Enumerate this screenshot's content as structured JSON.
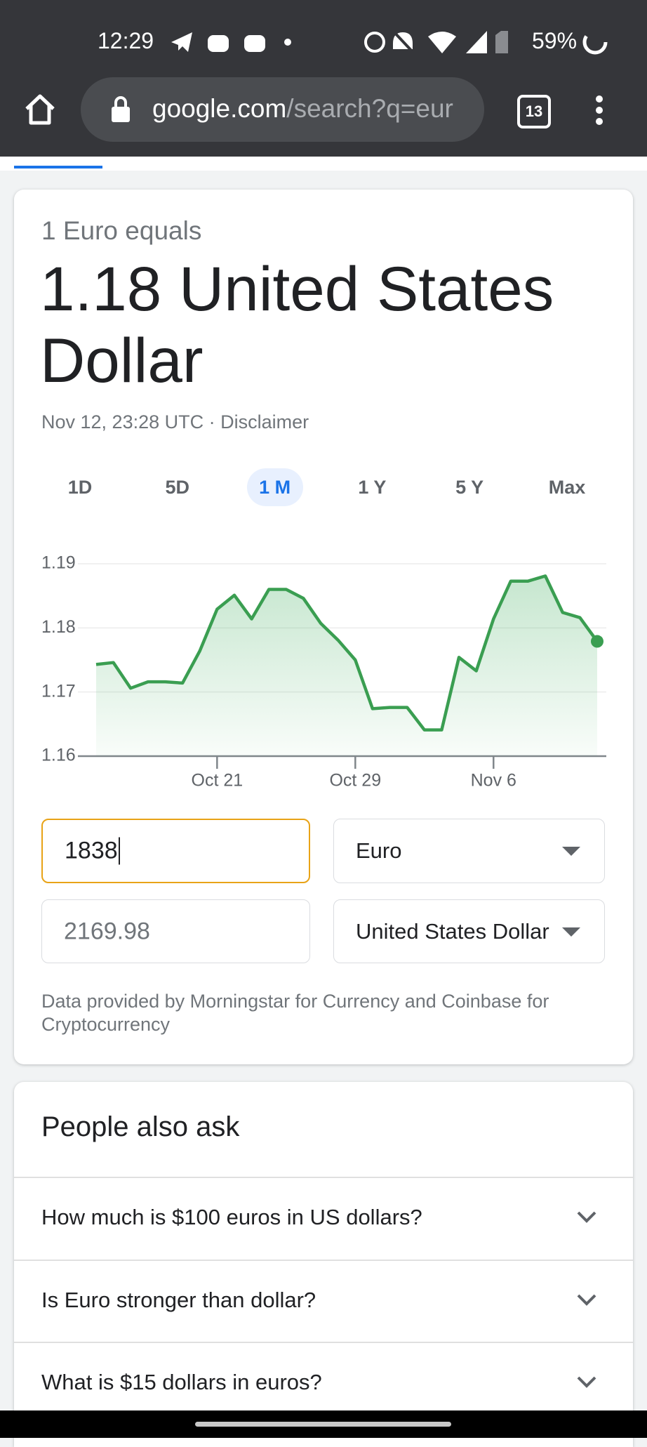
{
  "status_bar": {
    "time": "12:29",
    "battery": "59%"
  },
  "toolbar": {
    "url_host": "google.com",
    "url_path": "/search?q=eur",
    "tab_count": "13"
  },
  "converter": {
    "caption": "1 Euro equals",
    "result": "1.18 United States Dollar",
    "timestamp": "Nov 12, 23:28 UTC · Disclaimer",
    "ranges": [
      "1D",
      "5D",
      "1 M",
      "1 Y",
      "5 Y",
      "Max"
    ],
    "amount_from": "1838",
    "currency_from": "Euro",
    "amount_to": "2169.98",
    "currency_to": "United States Dollar",
    "footnote": "Data provided by Morningstar for Currency and Coinbase for Cryptocurrency"
  },
  "chart_data": {
    "type": "line",
    "categories": [
      null,
      null,
      null,
      null,
      null,
      null,
      null,
      "Oct 21",
      null,
      null,
      null,
      null,
      null,
      null,
      null,
      "Oct 29",
      null,
      null,
      null,
      null,
      null,
      null,
      null,
      "Nov 6",
      null,
      null,
      null,
      null,
      null,
      null
    ],
    "values": [
      1.1743,
      1.1746,
      1.1706,
      1.1716,
      1.1716,
      1.1714,
      1.1764,
      1.1829,
      1.1851,
      1.1814,
      1.186,
      1.186,
      1.1846,
      1.1807,
      1.1781,
      1.175,
      1.1674,
      1.1676,
      1.1676,
      1.1641,
      1.1641,
      1.1754,
      1.1733,
      1.1814,
      1.1873,
      1.1873,
      1.1881,
      1.1824,
      1.1816,
      1.1779
    ],
    "color": "#3a9e51",
    "ylim": [
      1.16,
      1.19
    ],
    "yticks": [
      1.16,
      1.17,
      1.18,
      1.19
    ],
    "grid": true
  },
  "people_also_ask": {
    "title": "People also ask",
    "questions": [
      "How much is $100 euros in US dollars?",
      "Is Euro stronger than dollar?",
      "What is $15 dollars in euros?"
    ]
  }
}
